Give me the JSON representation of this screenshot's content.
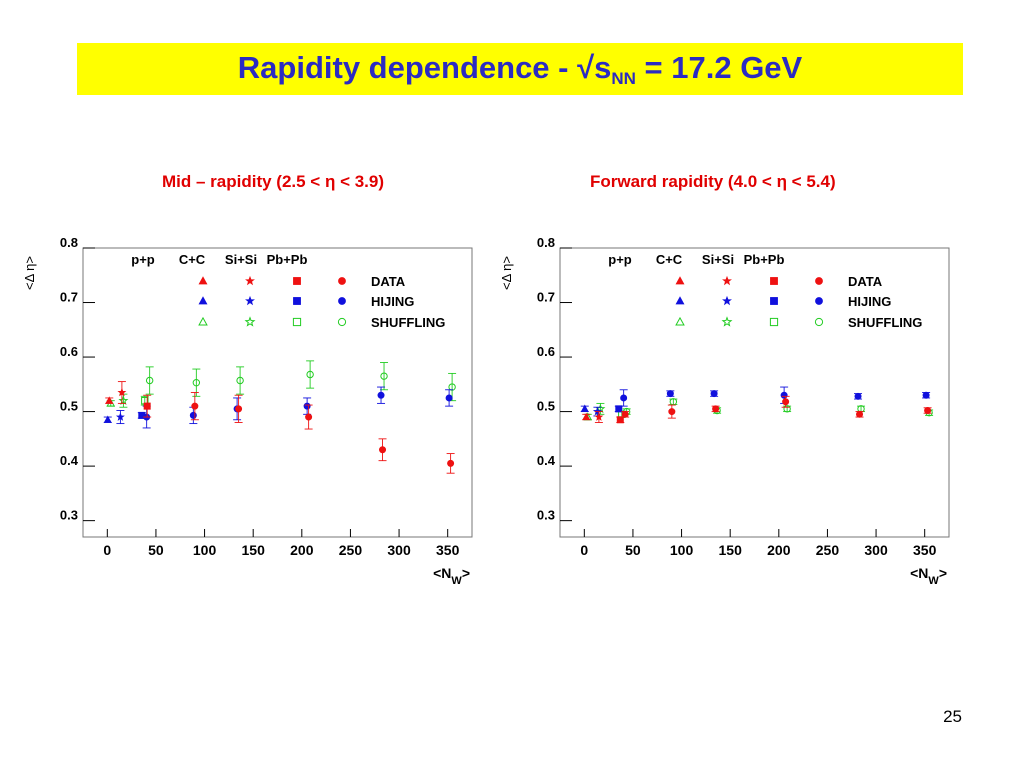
{
  "slide": {
    "title_main": "Rapidity dependence - √s",
    "title_sub": "NN",
    "title_tail": " = 17.2 GeV",
    "subtitle_left": "Mid – rapidity (2.5 < η < 3.9)",
    "subtitle_right": "Forward rapidity (4.0 < η < 5.4)",
    "page_number": "25"
  },
  "legend": {
    "systems": [
      "p+p",
      "C+C",
      "Si+Si",
      "Pb+Pb"
    ],
    "rows": [
      "DATA",
      "HIJING",
      "SHUFFLING"
    ],
    "colors": {
      "DATA": "#ee1111",
      "HIJING": "#1010dd",
      "SHUFFLING": "#22cc22"
    },
    "markers": {
      "p+p": "triangle",
      "C+C": "star",
      "Si+Si": "square",
      "Pb+Pb": "circle"
    }
  },
  "chart_data": [
    {
      "type": "scatter",
      "title": "Mid – rapidity (2.5 < η < 3.9)",
      "xlabel": "<N_W>",
      "ylabel": "<Δ η>",
      "xlim": [
        -25,
        375
      ],
      "ylim": [
        0.27,
        0.8
      ],
      "xticks": [
        "0",
        "50",
        "100",
        "150",
        "200",
        "250",
        "300",
        "350"
      ],
      "yticks": [
        "0.3",
        "0.4",
        "0.5",
        "0.6",
        "0.7",
        "0.8"
      ],
      "grid": false,
      "legend_position": "top",
      "series": [
        {
          "name": "DATA",
          "system": "p+p",
          "points": [
            {
              "x": 2,
              "y": 0.52,
              "err": 0.005
            }
          ]
        },
        {
          "name": "DATA",
          "system": "C+C",
          "points": [
            {
              "x": 15,
              "y": 0.535,
              "err": 0.02
            }
          ]
        },
        {
          "name": "DATA",
          "system": "Si+Si",
          "points": [
            {
              "x": 41,
              "y": 0.51,
              "err": 0.02
            }
          ]
        },
        {
          "name": "DATA",
          "system": "Pb+Pb",
          "points": [
            {
              "x": 90,
              "y": 0.51,
              "err": 0.025
            },
            {
              "x": 135,
              "y": 0.505,
              "err": 0.025
            },
            {
              "x": 207,
              "y": 0.49,
              "err": 0.022
            },
            {
              "x": 283,
              "y": 0.43,
              "err": 0.02
            },
            {
              "x": 353,
              "y": 0.405,
              "err": 0.018
            }
          ]
        },
        {
          "name": "HIJING",
          "system": "p+p",
          "points": [
            {
              "x": 2,
              "y": 0.485,
              "err": 0.005
            }
          ]
        },
        {
          "name": "HIJING",
          "system": "C+C",
          "points": [
            {
              "x": 15,
              "y": 0.49,
              "err": 0.012
            }
          ]
        },
        {
          "name": "HIJING",
          "system": "Si+Si",
          "points": [
            {
              "x": 37,
              "y": 0.493,
              "err": 0.005
            }
          ]
        },
        {
          "name": "HIJING",
          "system": "Pb+Pb",
          "points": [
            {
              "x": 42,
              "y": 0.49,
              "err": 0.02
            },
            {
              "x": 90,
              "y": 0.493,
              "err": 0.015
            },
            {
              "x": 135,
              "y": 0.505,
              "err": 0.02
            },
            {
              "x": 207,
              "y": 0.51,
              "err": 0.015
            },
            {
              "x": 283,
              "y": 0.53,
              "err": 0.015
            },
            {
              "x": 353,
              "y": 0.525,
              "err": 0.015
            }
          ]
        },
        {
          "name": "SHUFFLING",
          "system": "p+p",
          "points": [
            {
              "x": 2,
              "y": 0.515,
              "err": 0.005
            }
          ]
        },
        {
          "name": "SHUFFLING",
          "system": "C+C",
          "points": [
            {
              "x": 15,
              "y": 0.52,
              "err": 0.012
            }
          ]
        },
        {
          "name": "SHUFFLING",
          "system": "Si+Si",
          "points": [
            {
              "x": 37,
              "y": 0.52,
              "err": 0.008
            }
          ]
        },
        {
          "name": "SHUFFLING",
          "system": "Pb+Pb",
          "points": [
            {
              "x": 42,
              "y": 0.557,
              "err": 0.025
            },
            {
              "x": 90,
              "y": 0.553,
              "err": 0.025
            },
            {
              "x": 135,
              "y": 0.557,
              "err": 0.025
            },
            {
              "x": 207,
              "y": 0.568,
              "err": 0.025
            },
            {
              "x": 283,
              "y": 0.565,
              "err": 0.025
            },
            {
              "x": 353,
              "y": 0.545,
              "err": 0.025
            }
          ]
        }
      ]
    },
    {
      "type": "scatter",
      "title": "Forward rapidity (4.0 < η < 5.4)",
      "xlabel": "<N_W>",
      "ylabel": "<Δ η>",
      "xlim": [
        -25,
        375
      ],
      "ylim": [
        0.27,
        0.8
      ],
      "xticks": [
        "0",
        "50",
        "100",
        "150",
        "200",
        "250",
        "300",
        "350"
      ],
      "yticks": [
        "0.3",
        "0.4",
        "0.5",
        "0.6",
        "0.7",
        "0.8"
      ],
      "grid": false,
      "legend_position": "top",
      "series": [
        {
          "name": "DATA",
          "system": "p+p",
          "points": [
            {
              "x": 2,
              "y": 0.49,
              "err": 0.005
            }
          ]
        },
        {
          "name": "DATA",
          "system": "C+C",
          "points": [
            {
              "x": 15,
              "y": 0.49,
              "err": 0.01
            }
          ]
        },
        {
          "name": "DATA",
          "system": "Si+Si",
          "points": [
            {
              "x": 37,
              "y": 0.485,
              "err": 0.005
            }
          ]
        },
        {
          "name": "DATA",
          "system": "Pb+Pb",
          "points": [
            {
              "x": 42,
              "y": 0.495,
              "err": 0.005
            },
            {
              "x": 90,
              "y": 0.5,
              "err": 0.012
            },
            {
              "x": 135,
              "y": 0.505,
              "err": 0.005
            },
            {
              "x": 207,
              "y": 0.518,
              "err": 0.01
            },
            {
              "x": 283,
              "y": 0.495,
              "err": 0.005
            },
            {
              "x": 353,
              "y": 0.502,
              "err": 0.005
            }
          ]
        },
        {
          "name": "HIJING",
          "system": "p+p",
          "points": [
            {
              "x": 2,
              "y": 0.505,
              "err": 0.005
            }
          ]
        },
        {
          "name": "HIJING",
          "system": "C+C",
          "points": [
            {
              "x": 15,
              "y": 0.5,
              "err": 0.008
            }
          ]
        },
        {
          "name": "HIJING",
          "system": "Si+Si",
          "points": [
            {
              "x": 37,
              "y": 0.505,
              "err": 0.005
            }
          ]
        },
        {
          "name": "HIJING",
          "system": "Pb+Pb",
          "points": [
            {
              "x": 42,
              "y": 0.525,
              "err": 0.015
            },
            {
              "x": 90,
              "y": 0.533,
              "err": 0.005
            },
            {
              "x": 135,
              "y": 0.533,
              "err": 0.005
            },
            {
              "x": 207,
              "y": 0.53,
              "err": 0.015
            },
            {
              "x": 283,
              "y": 0.528,
              "err": 0.005
            },
            {
              "x": 353,
              "y": 0.53,
              "err": 0.005
            }
          ]
        },
        {
          "name": "SHUFFLING",
          "system": "p+p",
          "points": [
            {
              "x": 2,
              "y": 0.49,
              "err": 0.005
            }
          ]
        },
        {
          "name": "SHUFFLING",
          "system": "C+C",
          "points": [
            {
              "x": 15,
              "y": 0.505,
              "err": 0.01
            }
          ]
        },
        {
          "name": "SHUFFLING",
          "system": "Si+Si",
          "points": [
            {
              "x": 37,
              "y": 0.495,
              "err": 0.005
            }
          ]
        },
        {
          "name": "SHUFFLING",
          "system": "Pb+Pb",
          "points": [
            {
              "x": 42,
              "y": 0.5,
              "err": 0.005
            },
            {
              "x": 90,
              "y": 0.518,
              "err": 0.005
            },
            {
              "x": 135,
              "y": 0.502,
              "err": 0.005
            },
            {
              "x": 207,
              "y": 0.505,
              "err": 0.005
            },
            {
              "x": 283,
              "y": 0.505,
              "err": 0.005
            },
            {
              "x": 353,
              "y": 0.498,
              "err": 0.005
            }
          ]
        }
      ]
    }
  ]
}
